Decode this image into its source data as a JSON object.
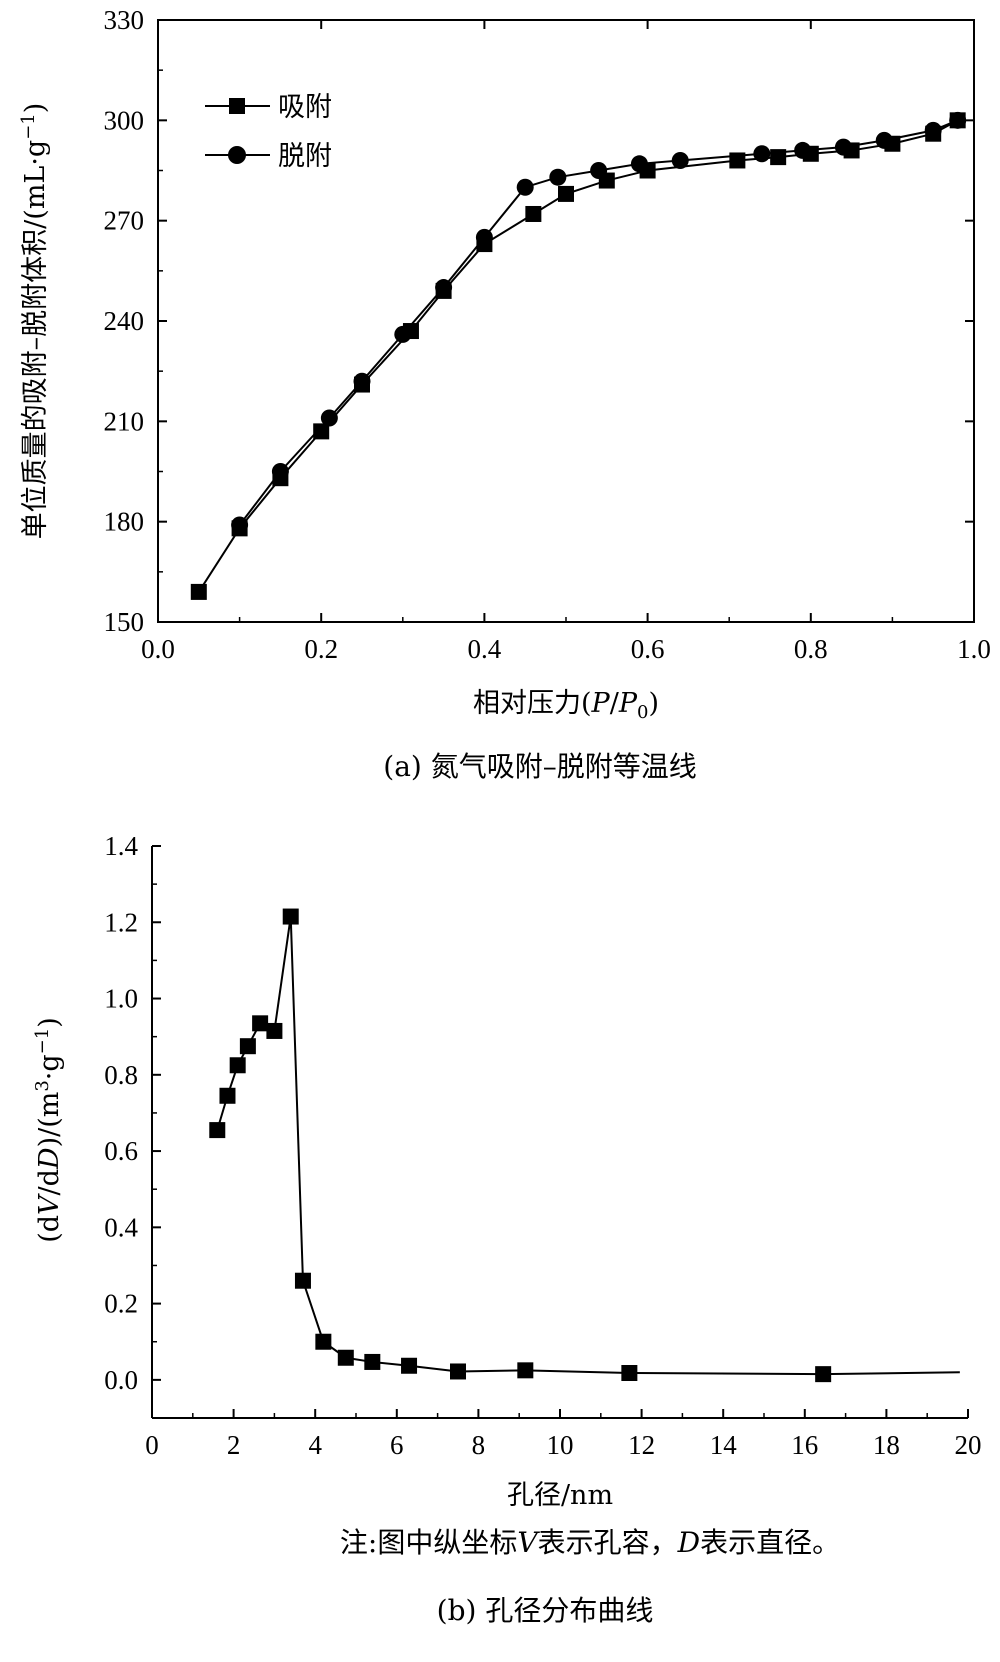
{
  "chart_data": [
    {
      "type": "line",
      "title": "",
      "caption": "(a) 氮气吸附–脱附等温线",
      "xlabel": "相对压力(P/P0)",
      "ylabel": "单位质量的吸附–脱附体积/(mL·g⁻¹)",
      "xlim": [
        0.0,
        1.0
      ],
      "ylim": [
        150,
        330
      ],
      "xticks": [
        "0.0",
        "0.2",
        "0.4",
        "0.6",
        "0.8",
        "1.0"
      ],
      "yticks": [
        "150",
        "180",
        "210",
        "240",
        "270",
        "300",
        "330"
      ],
      "legend_position": "top-left",
      "series": [
        {
          "name": "吸附",
          "marker": "square",
          "x": [
            0.05,
            0.1,
            0.15,
            0.2,
            0.25,
            0.31,
            0.35,
            0.4,
            0.46,
            0.5,
            0.55,
            0.6,
            0.71,
            0.76,
            0.8,
            0.85,
            0.9,
            0.95,
            0.98
          ],
          "y": [
            159,
            178,
            193,
            207,
            221,
            237,
            249,
            263,
            272,
            278,
            282,
            285,
            288,
            289,
            290,
            291,
            293,
            296,
            300
          ]
        },
        {
          "name": "脱附",
          "marker": "circle",
          "x": [
            0.1,
            0.15,
            0.21,
            0.25,
            0.3,
            0.35,
            0.4,
            0.45,
            0.49,
            0.54,
            0.59,
            0.64,
            0.74,
            0.79,
            0.84,
            0.89,
            0.95,
            0.98
          ],
          "y": [
            179,
            195,
            211,
            222,
            236,
            250,
            265,
            280,
            283,
            285,
            287,
            288,
            290,
            291,
            292,
            294,
            297,
            300
          ]
        }
      ]
    },
    {
      "type": "line",
      "title": "",
      "caption": "(b) 孔径分布曲线",
      "note": "注:图中纵坐标V表示孔容，D表示直径。",
      "xlabel": "孔径/nm",
      "ylabel": "(dV/dD)/(m³·g⁻¹)",
      "xlim": [
        0,
        20
      ],
      "ylim": [
        -0.1,
        1.4
      ],
      "xticks": [
        "0",
        "2",
        "4",
        "6",
        "8",
        "10",
        "12",
        "14",
        "16",
        "18",
        "20"
      ],
      "yticks": [
        "0.0",
        "0.2",
        "0.4",
        "0.6",
        "0.8",
        "1.0",
        "1.2",
        "1.4"
      ],
      "series": [
        {
          "marker": "square",
          "x": [
            1.6,
            1.85,
            2.1,
            2.35,
            2.65,
            3.0,
            3.4,
            3.7,
            4.2,
            4.75,
            5.4,
            6.3,
            7.5,
            9.15,
            11.7,
            16.45,
            19.8
          ],
          "y": [
            0.655,
            0.745,
            0.825,
            0.875,
            0.935,
            0.915,
            1.215,
            0.26,
            0.1,
            0.058,
            0.047,
            0.037,
            0.022,
            0.025,
            0.018,
            0.015,
            0.02
          ],
          "marker_points": 16
        }
      ]
    }
  ],
  "colors": {
    "ink": "#000000",
    "background": "#ffffff"
  }
}
